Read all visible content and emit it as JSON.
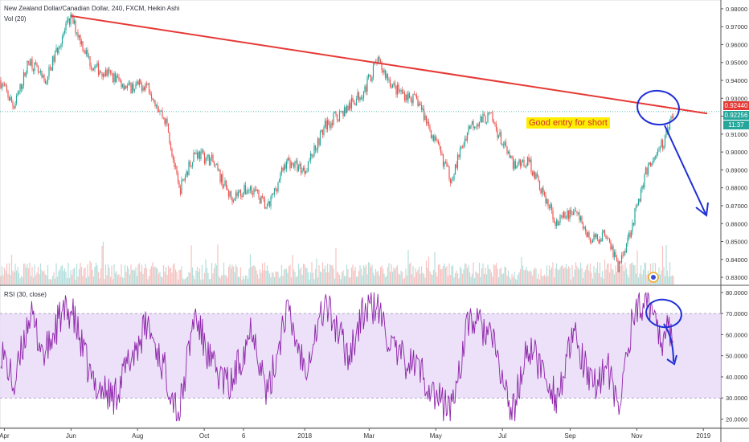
{
  "header": {
    "title": "New Zealand Dollar/Canadian Dollar, 240, FXCM, Heikin Ashi",
    "volume_label": "Vol (20)",
    "rsi_label": "RSI (30, close)"
  },
  "annotation": {
    "text": "Good entry for short"
  },
  "price_tags": {
    "trend_value": "0.92440",
    "last_price": "0.92256",
    "countdown": "11:37"
  },
  "colors": {
    "up": "#26a69a",
    "down": "#ef5350",
    "trendline": "#e53935",
    "drawing": "#1e2fd6",
    "rsi_line": "#8e24aa",
    "rsi_band": "#e9dcf7"
  },
  "chart_data": [
    {
      "type": "candlestick",
      "title": "New Zealand Dollar/Canadian Dollar, 240, FXCM, Heikin Ashi",
      "x_labels": [
        "Apr",
        "Jun",
        "Aug",
        "Oct",
        "6",
        "2018",
        "Mar",
        "May",
        "Jul",
        "Sep",
        "Nov",
        "2019"
      ],
      "y_ticks": [
        "0.98000",
        "0.97000",
        "0.96000",
        "0.95000",
        "0.94000",
        "0.93000",
        "0.92000",
        "0.91000",
        "0.90000",
        "0.89000",
        "0.88000",
        "0.87000",
        "0.86000",
        "0.85000",
        "0.84000",
        "0.83000"
      ],
      "ylim": [
        0.826,
        0.984
      ],
      "close_path": [
        {
          "x": "Mar 28 2017",
          "y": 0.94
        },
        {
          "x": "Apr 10 2017",
          "y": 0.925
        },
        {
          "x": "Apr 24 2017",
          "y": 0.952
        },
        {
          "x": "May 8 2017",
          "y": 0.938
        },
        {
          "x": "May 22 2017",
          "y": 0.962
        },
        {
          "x": "Jun 1 2017",
          "y": 0.975
        },
        {
          "x": "Jun 20 2017",
          "y": 0.948
        },
        {
          "x": "Jul 10 2017",
          "y": 0.942
        },
        {
          "x": "Jul 24 2017",
          "y": 0.936
        },
        {
          "x": "Aug 10 2017",
          "y": 0.938
        },
        {
          "x": "Aug 28 2017",
          "y": 0.915
        },
        {
          "x": "Sep 8 2017",
          "y": 0.878
        },
        {
          "x": "Sep 22 2017",
          "y": 0.9
        },
        {
          "x": "Oct 8 2017",
          "y": 0.895
        },
        {
          "x": "Oct 25 2017",
          "y": 0.875
        },
        {
          "x": "Nov 14 2017",
          "y": 0.88
        },
        {
          "x": "Nov 28 2017",
          "y": 0.868
        },
        {
          "x": "Dec 15 2017",
          "y": 0.895
        },
        {
          "x": "Jan 1 2018",
          "y": 0.89
        },
        {
          "x": "Jan 20 2018",
          "y": 0.915
        },
        {
          "x": "Feb 10 2018",
          "y": 0.925
        },
        {
          "x": "Feb 25 2018",
          "y": 0.935
        },
        {
          "x": "Mar 8 2018",
          "y": 0.951
        },
        {
          "x": "Mar 25 2018",
          "y": 0.935
        },
        {
          "x": "Apr 15 2018",
          "y": 0.928
        },
        {
          "x": "May 1 2018",
          "y": 0.905
        },
        {
          "x": "May 15 2018",
          "y": 0.885
        },
        {
          "x": "Jun 1 2018",
          "y": 0.915
        },
        {
          "x": "Jun 20 2018",
          "y": 0.92
        },
        {
          "x": "Jul 10 2018",
          "y": 0.893
        },
        {
          "x": "Jul 25 2018",
          "y": 0.895
        },
        {
          "x": "Aug 10 2018",
          "y": 0.873
        },
        {
          "x": "Aug 20 2018",
          "y": 0.86
        },
        {
          "x": "Sep 5 2018",
          "y": 0.868
        },
        {
          "x": "Sep 20 2018",
          "y": 0.85
        },
        {
          "x": "Oct 5 2018",
          "y": 0.855
        },
        {
          "x": "Oct 15 2018",
          "y": 0.835
        },
        {
          "x": "Oct 28 2018",
          "y": 0.86
        },
        {
          "x": "Nov 10 2018",
          "y": 0.89
        },
        {
          "x": "Nov 25 2018",
          "y": 0.905
        },
        {
          "x": "Dec 5 2018",
          "y": 0.9225
        }
      ],
      "trendline": [
        {
          "x": "Jun 1 2017",
          "y": 0.976
        },
        {
          "x": "Dec 20 2018",
          "y": 0.9215
        }
      ],
      "last_price": 0.92256
    },
    {
      "type": "bar",
      "title": "Vol (20)",
      "series": [
        {
          "name": "Vol (20)"
        }
      ]
    },
    {
      "type": "line",
      "title": "RSI (30, close)",
      "y_ticks": [
        "80.0000",
        "70.0000",
        "60.0000",
        "50.0000",
        "40.0000",
        "30.0000",
        "20.0000"
      ],
      "ylim": [
        16,
        83
      ],
      "band": [
        30,
        70
      ],
      "path": [
        {
          "x": "Mar 28 2017",
          "y": 55
        },
        {
          "x": "Apr 10 2017",
          "y": 35
        },
        {
          "x": "Apr 24 2017",
          "y": 70
        },
        {
          "x": "May 8 2017",
          "y": 50
        },
        {
          "x": "May 22 2017",
          "y": 68
        },
        {
          "x": "Jun 1 2017",
          "y": 72
        },
        {
          "x": "Jun 20 2017",
          "y": 38
        },
        {
          "x": "Jul 10 2017",
          "y": 30
        },
        {
          "x": "Jul 24 2017",
          "y": 47
        },
        {
          "x": "Aug 10 2017",
          "y": 65
        },
        {
          "x": "Aug 28 2017",
          "y": 40
        },
        {
          "x": "Sep 8 2017",
          "y": 22
        },
        {
          "x": "Sep 22 2017",
          "y": 70
        },
        {
          "x": "Oct 8 2017",
          "y": 45
        },
        {
          "x": "Oct 25 2017",
          "y": 35
        },
        {
          "x": "Nov 14 2017",
          "y": 65
        },
        {
          "x": "Nov 28 2017",
          "y": 30
        },
        {
          "x": "Dec 15 2017",
          "y": 72
        },
        {
          "x": "Jan 1 2018",
          "y": 45
        },
        {
          "x": "Jan 20 2018",
          "y": 75
        },
        {
          "x": "Feb 10 2018",
          "y": 50
        },
        {
          "x": "Feb 25 2018",
          "y": 72
        },
        {
          "x": "Mar 8 2018",
          "y": 73
        },
        {
          "x": "Mar 25 2018",
          "y": 50
        },
        {
          "x": "Apr 15 2018",
          "y": 45
        },
        {
          "x": "May 1 2018",
          "y": 30
        },
        {
          "x": "May 15 2018",
          "y": 25
        },
        {
          "x": "Jun 1 2018",
          "y": 68
        },
        {
          "x": "Jun 20 2018",
          "y": 60
        },
        {
          "x": "Jul 10 2018",
          "y": 22
        },
        {
          "x": "Jul 25 2018",
          "y": 55
        },
        {
          "x": "Aug 10 2018",
          "y": 40
        },
        {
          "x": "Aug 20 2018",
          "y": 30
        },
        {
          "x": "Sep 5 2018",
          "y": 60
        },
        {
          "x": "Sep 20 2018",
          "y": 35
        },
        {
          "x": "Oct 5 2018",
          "y": 45
        },
        {
          "x": "Oct 15 2018",
          "y": 23
        },
        {
          "x": "Oct 28 2018",
          "y": 68
        },
        {
          "x": "Nov 10 2018",
          "y": 79
        },
        {
          "x": "Nov 25 2018",
          "y": 58
        },
        {
          "x": "Dec 5 2018",
          "y": 65
        }
      ]
    }
  ]
}
